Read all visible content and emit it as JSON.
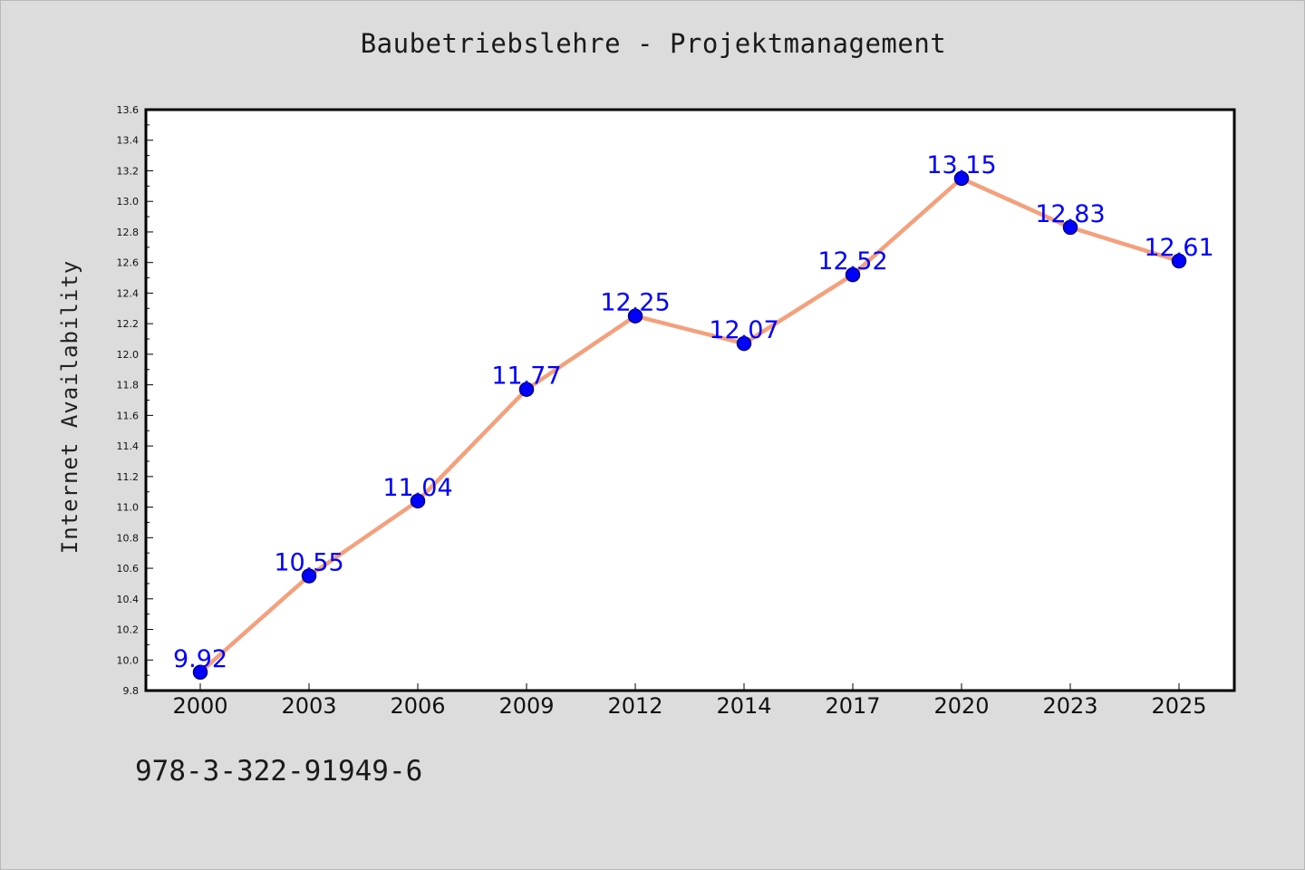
{
  "colors": {
    "background": "#dcdcdc",
    "plot_area": "#ffffff",
    "line": "#f4a07c",
    "marker_fill": "#0000ff",
    "marker_edge": "#000080",
    "data_label": "#0000ff",
    "axes": "#000000"
  },
  "footer": {
    "text": "978-3-322-91949-6"
  },
  "chart_data": {
    "type": "line",
    "title": "Baubetriebslehre - Projektmanagement",
    "xlabel": "",
    "ylabel": "Internet Availability",
    "categories": [
      "2000",
      "2003",
      "2006",
      "2009",
      "2012",
      "2014",
      "2017",
      "2020",
      "2023",
      "2025"
    ],
    "series": [
      {
        "values": [
          9.92,
          10.55,
          11.04,
          11.77,
          12.25,
          12.07,
          12.52,
          13.15,
          12.83,
          12.61
        ],
        "marker": "circle",
        "data_labels": [
          "9.92",
          "10.55",
          "11.04",
          "11.77",
          "12.25",
          "12.07",
          "12.52",
          "13.15",
          "12.83",
          "12.61"
        ]
      }
    ],
    "ylim": [
      9.8,
      13.6
    ],
    "yticks": [
      9.8,
      10.0,
      10.2,
      10.4,
      10.6,
      10.8,
      11.0,
      11.2,
      11.4,
      11.6,
      11.8,
      12.0,
      12.2,
      12.4,
      12.6,
      12.8,
      13.0,
      13.2,
      13.4,
      13.6
    ],
    "ytick_labels": [
      "9.8",
      "10.0",
      "10.2",
      "10.4",
      "10.6",
      "10.8",
      "11.0",
      "11.2",
      "11.4",
      "11.6",
      "11.8",
      "12.0",
      "12.2",
      "12.4",
      "12.6",
      "12.8",
      "13.0",
      "13.2",
      "13.4",
      "13.6"
    ],
    "grid": false,
    "legend": "none"
  }
}
